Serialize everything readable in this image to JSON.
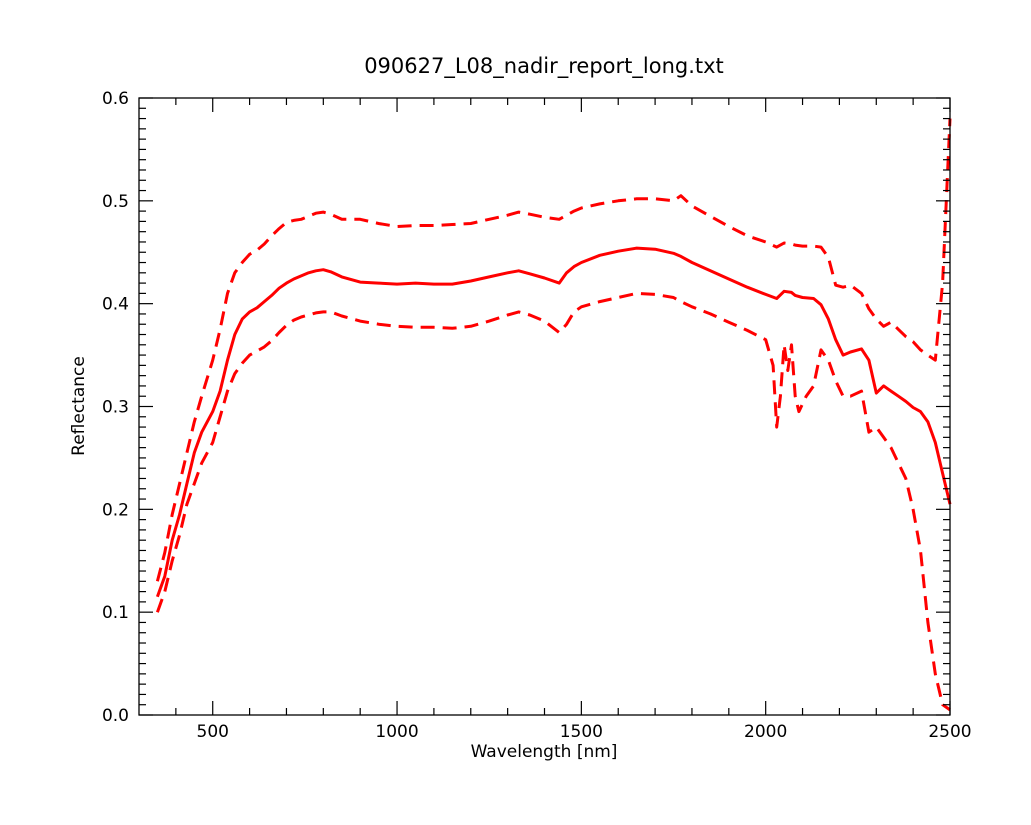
{
  "chart_data": {
    "type": "line",
    "title": "090627_L08_nadir_report_long.txt",
    "xlabel": "Wavelength [nm]",
    "ylabel": "Reflectance",
    "xlim": [
      300,
      2500
    ],
    "ylim": [
      0.0,
      0.6
    ],
    "xticks": [
      500,
      1000,
      1500,
      2000,
      2500
    ],
    "xtick_labels": [
      "500",
      "1000",
      "1500",
      "2000",
      "2500"
    ],
    "yticks": [
      0.0,
      0.1,
      0.2,
      0.3,
      0.4,
      0.5,
      0.6
    ],
    "ytick_labels": [
      "0.0",
      "0.1",
      "0.2",
      "0.3",
      "0.4",
      "0.5",
      "0.6"
    ],
    "grid": false,
    "legend": false,
    "series": [
      {
        "style": "solid",
        "color": "#ff0000",
        "x": [
          350,
          370,
          390,
          410,
          430,
          450,
          470,
          500,
          520,
          540,
          560,
          580,
          600,
          620,
          640,
          660,
          680,
          700,
          720,
          740,
          760,
          780,
          800,
          820,
          850,
          900,
          950,
          1000,
          1050,
          1100,
          1150,
          1200,
          1250,
          1300,
          1330,
          1360,
          1400,
          1440,
          1460,
          1480,
          1500,
          1550,
          1600,
          1650,
          1700,
          1750,
          1770,
          1800,
          1850,
          1900,
          1950,
          2000,
          2030,
          2050,
          2070,
          2080,
          2100,
          2130,
          2150,
          2170,
          2190,
          2210,
          2230,
          2260,
          2280,
          2300,
          2320,
          2340,
          2360,
          2380,
          2400,
          2420,
          2440,
          2460,
          2480,
          2500
        ],
        "y": [
          0.115,
          0.135,
          0.17,
          0.195,
          0.225,
          0.255,
          0.275,
          0.295,
          0.315,
          0.345,
          0.37,
          0.385,
          0.392,
          0.396,
          0.402,
          0.408,
          0.415,
          0.42,
          0.424,
          0.427,
          0.43,
          0.432,
          0.433,
          0.431,
          0.426,
          0.421,
          0.42,
          0.419,
          0.42,
          0.419,
          0.419,
          0.422,
          0.426,
          0.43,
          0.432,
          0.429,
          0.425,
          0.42,
          0.43,
          0.436,
          0.44,
          0.447,
          0.451,
          0.454,
          0.453,
          0.449,
          0.446,
          0.44,
          0.432,
          0.424,
          0.416,
          0.409,
          0.405,
          0.412,
          0.411,
          0.408,
          0.406,
          0.405,
          0.399,
          0.385,
          0.365,
          0.35,
          0.353,
          0.356,
          0.345,
          0.313,
          0.32,
          0.315,
          0.31,
          0.305,
          0.299,
          0.295,
          0.285,
          0.265,
          0.235,
          0.205
        ]
      },
      {
        "style": "dashed",
        "color": "#ff0000",
        "x": [
          350,
          370,
          390,
          410,
          430,
          450,
          470,
          500,
          520,
          540,
          560,
          580,
          600,
          620,
          640,
          660,
          680,
          700,
          720,
          740,
          760,
          780,
          800,
          820,
          850,
          900,
          950,
          1000,
          1050,
          1100,
          1150,
          1200,
          1250,
          1300,
          1330,
          1360,
          1400,
          1440,
          1460,
          1480,
          1500,
          1550,
          1600,
          1650,
          1700,
          1750,
          1770,
          1800,
          1850,
          1900,
          1950,
          2000,
          2030,
          2050,
          2070,
          2080,
          2100,
          2130,
          2150,
          2170,
          2190,
          2210,
          2230,
          2260,
          2280,
          2300,
          2320,
          2340,
          2360,
          2380,
          2400,
          2420,
          2440,
          2460,
          2480,
          2500
        ],
        "y": [
          0.13,
          0.158,
          0.195,
          0.225,
          0.255,
          0.285,
          0.31,
          0.345,
          0.375,
          0.41,
          0.43,
          0.44,
          0.448,
          0.452,
          0.458,
          0.466,
          0.473,
          0.479,
          0.481,
          0.482,
          0.485,
          0.488,
          0.489,
          0.487,
          0.482,
          0.482,
          0.478,
          0.475,
          0.476,
          0.476,
          0.477,
          0.478,
          0.482,
          0.486,
          0.489,
          0.487,
          0.484,
          0.482,
          0.486,
          0.49,
          0.493,
          0.497,
          0.5,
          0.502,
          0.502,
          0.5,
          0.505,
          0.495,
          0.485,
          0.475,
          0.466,
          0.46,
          0.455,
          0.459,
          0.458,
          0.457,
          0.456,
          0.456,
          0.455,
          0.445,
          0.418,
          0.416,
          0.418,
          0.41,
          0.395,
          0.385,
          0.378,
          0.382,
          0.375,
          0.368,
          0.363,
          0.355,
          0.35,
          0.345,
          0.42,
          0.58
        ]
      },
      {
        "style": "dashed",
        "color": "#ff0000",
        "x": [
          350,
          370,
          390,
          410,
          430,
          450,
          470,
          500,
          520,
          540,
          560,
          580,
          600,
          620,
          640,
          660,
          680,
          700,
          720,
          740,
          760,
          780,
          800,
          820,
          850,
          900,
          950,
          1000,
          1050,
          1100,
          1150,
          1200,
          1250,
          1300,
          1330,
          1360,
          1400,
          1440,
          1460,
          1480,
          1500,
          1550,
          1600,
          1650,
          1700,
          1750,
          1770,
          1800,
          1850,
          1900,
          1950,
          2000,
          2020,
          2030,
          2040,
          2050,
          2060,
          2070,
          2080,
          2090,
          2110,
          2130,
          2150,
          2170,
          2190,
          2210,
          2230,
          2260,
          2280,
          2300,
          2320,
          2340,
          2360,
          2380,
          2400,
          2420,
          2440,
          2460,
          2480,
          2500
        ],
        "y": [
          0.1,
          0.12,
          0.15,
          0.175,
          0.205,
          0.225,
          0.245,
          0.265,
          0.29,
          0.315,
          0.332,
          0.342,
          0.35,
          0.354,
          0.358,
          0.364,
          0.372,
          0.379,
          0.384,
          0.387,
          0.389,
          0.391,
          0.392,
          0.392,
          0.388,
          0.383,
          0.38,
          0.378,
          0.377,
          0.377,
          0.376,
          0.378,
          0.383,
          0.389,
          0.392,
          0.389,
          0.383,
          0.372,
          0.38,
          0.392,
          0.397,
          0.402,
          0.406,
          0.41,
          0.409,
          0.406,
          0.402,
          0.397,
          0.39,
          0.382,
          0.374,
          0.365,
          0.34,
          0.28,
          0.31,
          0.36,
          0.335,
          0.36,
          0.31,
          0.295,
          0.31,
          0.32,
          0.355,
          0.345,
          0.325,
          0.31,
          0.31,
          0.315,
          0.275,
          0.28,
          0.27,
          0.26,
          0.245,
          0.23,
          0.2,
          0.16,
          0.09,
          0.04,
          0.01,
          0.005
        ]
      }
    ]
  }
}
